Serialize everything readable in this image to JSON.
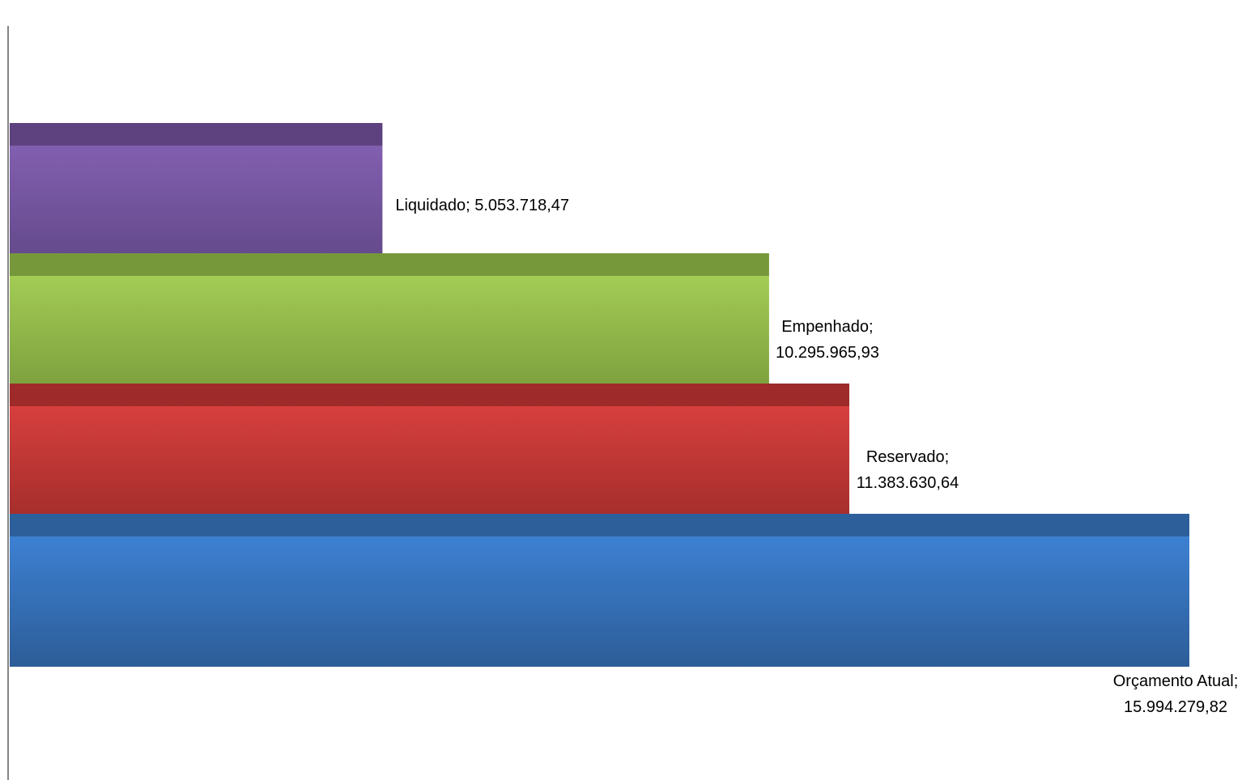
{
  "chart_data": {
    "type": "bar",
    "orientation": "horizontal",
    "style": "3d-stacked-depth",
    "categories": [
      "Orçamento Atual",
      "Reservado",
      "Empenhado",
      "Liquidado"
    ],
    "values": [
      15994279.82,
      11383630.64,
      10295965.93,
      5053718.47
    ],
    "data_labels": [
      [
        "Orçamento Atual;",
        "15.994.279,82"
      ],
      [
        "Reservado;",
        "11.383.630,64"
      ],
      [
        "Empenhado;",
        "10.295.965,93"
      ],
      [
        "Liquidado;",
        "5.053.718,47"
      ]
    ],
    "title": "",
    "xlabel": "",
    "ylabel": "",
    "xlim": [
      0,
      15994279.82
    ],
    "grid": false,
    "legend": "none",
    "colors": {
      "Orçamento Atual": {
        "light": "#3d80d2",
        "dark": "#2c5d98",
        "top": "#2d5f9b"
      },
      "Reservado": {
        "light": "#d63f3d",
        "dark": "#9d2b29",
        "top": "#9e2b2a"
      },
      "Empenhado": {
        "light": "#a3cc55",
        "dark": "#77993a",
        "top": "#76983a"
      },
      "Liquidado": {
        "light": "#825fb0",
        "dark": "#5f4685",
        "top": "#5e427f"
      }
    },
    "axis_color": "#868686"
  }
}
